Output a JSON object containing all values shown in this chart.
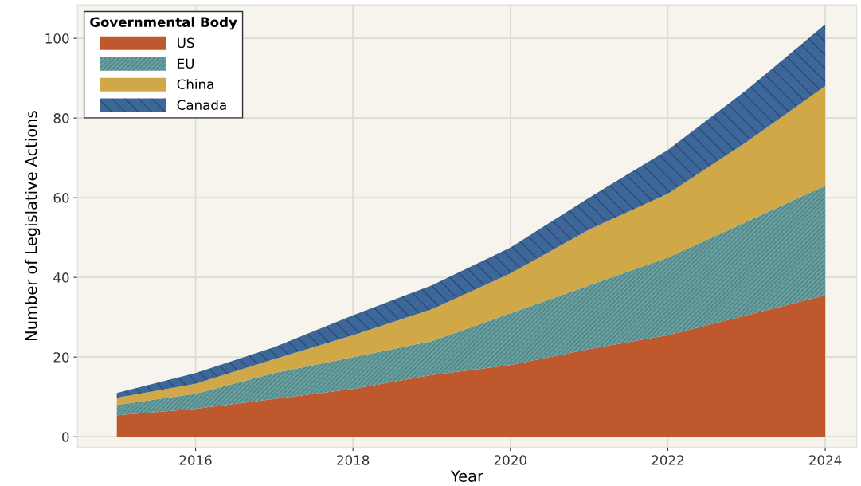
{
  "chart_data": {
    "type": "area",
    "stacked": true,
    "xlabel": "Year",
    "ylabel": "Number of Legislative Actions",
    "legend_title": "Governmental Body",
    "legend": "top left",
    "grid": true,
    "x": [
      2015,
      2016,
      2017,
      2018,
      2019,
      2020,
      2021,
      2022,
      2023,
      2024
    ],
    "series": [
      {
        "name": "US",
        "color": "#c0582e",
        "values": [
          5.4,
          7,
          9.5,
          12,
          15.5,
          18,
          22,
          25.5,
          30.5,
          35.5
        ]
      },
      {
        "name": "EU",
        "color": "#6a9fa0",
        "values": [
          2.6,
          3.8,
          6.5,
          8,
          8.5,
          13,
          16,
          19.5,
          23.5,
          27.5
        ]
      },
      {
        "name": "China",
        "color": "#d1a847",
        "values": [
          1.8,
          2.5,
          3.5,
          5.5,
          8,
          10,
          14,
          16,
          20,
          25
        ]
      },
      {
        "name": "Canada",
        "color": "#3d6699",
        "values": [
          1.2,
          2.7,
          3,
          5,
          6,
          6.5,
          8,
          11,
          13,
          15.5
        ]
      }
    ],
    "xlim": [
      2014.5,
      2024.4
    ],
    "xticks": [
      2016,
      2018,
      2020,
      2022,
      2024
    ],
    "ylim": [
      -2.6,
      108.4
    ],
    "yticks": [
      0,
      20,
      40,
      60,
      80,
      100
    ]
  }
}
